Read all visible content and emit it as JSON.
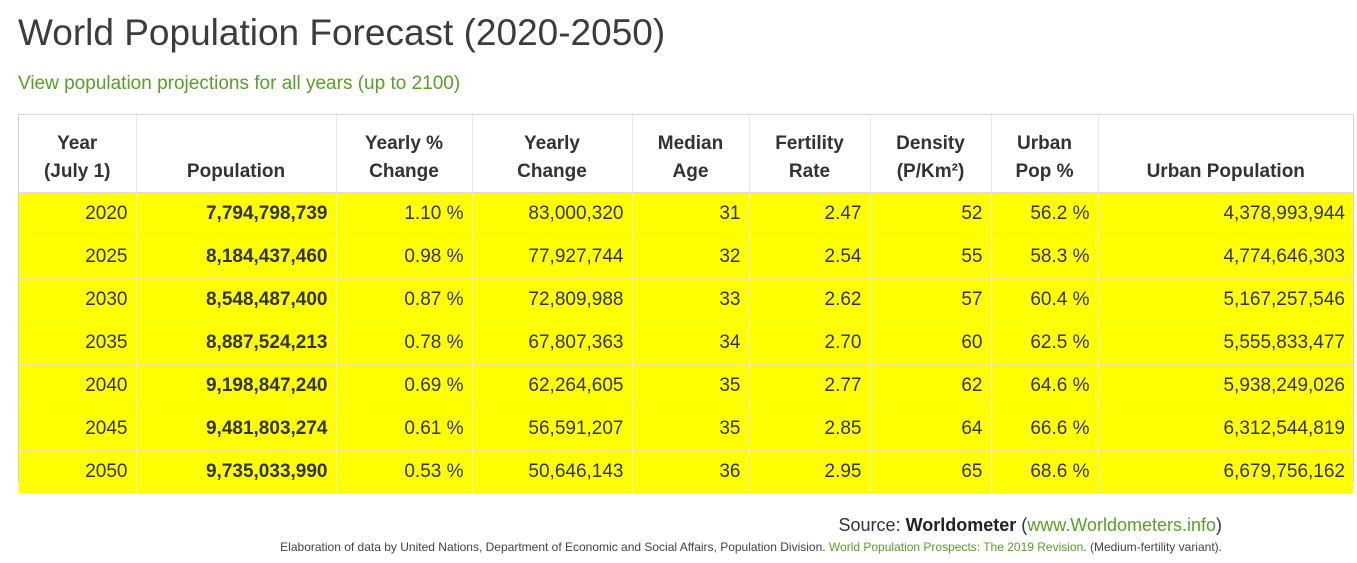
{
  "title": "World Population Forecast (2020-2050)",
  "subtitle_link": "View population projections for all years (up to 2100)",
  "table": {
    "headers": [
      {
        "line1": "Year",
        "line2": "(July 1)"
      },
      {
        "line1": "",
        "line2": "Population"
      },
      {
        "line1": "Yearly %",
        "line2": "Change"
      },
      {
        "line1": "Yearly",
        "line2": "Change"
      },
      {
        "line1": "Median",
        "line2": "Age"
      },
      {
        "line1": "Fertility",
        "line2": "Rate"
      },
      {
        "line1": "Density",
        "line2": "(P/Km²)"
      },
      {
        "line1": "Urban",
        "line2": "Pop %"
      },
      {
        "line1": "",
        "line2": "Urban Population"
      }
    ],
    "rows": [
      [
        "2020",
        "7,794,798,739",
        "1.10 %",
        "83,000,320",
        "31",
        "2.47",
        "52",
        "56.2 %",
        "4,378,993,944"
      ],
      [
        "2025",
        "8,184,437,460",
        "0.98 %",
        "77,927,744",
        "32",
        "2.54",
        "55",
        "58.3 %",
        "4,774,646,303"
      ],
      [
        "2030",
        "8,548,487,400",
        "0.87 %",
        "72,809,988",
        "33",
        "2.62",
        "57",
        "60.4 %",
        "5,167,257,546"
      ],
      [
        "2035",
        "8,887,524,213",
        "0.78 %",
        "67,807,363",
        "34",
        "2.70",
        "60",
        "62.5 %",
        "5,555,833,477"
      ],
      [
        "2040",
        "9,198,847,240",
        "0.69 %",
        "62,264,605",
        "35",
        "2.77",
        "62",
        "64.6 %",
        "5,938,249,026"
      ],
      [
        "2045",
        "9,481,803,274",
        "0.61 %",
        "56,591,207",
        "35",
        "2.85",
        "64",
        "66.6 %",
        "6,312,544,819"
      ],
      [
        "2050",
        "9,735,033,990",
        "0.53 %",
        "50,646,143",
        "36",
        "2.95",
        "65",
        "68.6 %",
        "6,679,756,162"
      ]
    ]
  },
  "source": {
    "prefix": "Source: ",
    "name": "Worldometer",
    "link_open": " (",
    "link": "www.Worldometers.info",
    "link_close": ")"
  },
  "footnote": {
    "text": "Elaboration of data by United Nations, Department of Economic and Social Affairs, Population Division. ",
    "link": "World Population Prospects: The 2019 Revision",
    "suffix": ". (Medium-fertility variant)."
  },
  "colors": {
    "row_highlight": "#ffff00",
    "link": "#5a9e2a",
    "title": "#3c3c3c"
  }
}
